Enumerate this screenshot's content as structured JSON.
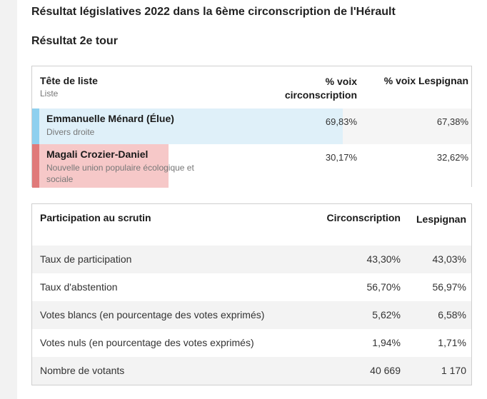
{
  "header": {
    "title": "Résultat législatives 2022 dans la 6ème circonscription de l'Hérault",
    "subtitle": "Résultat 2e tour"
  },
  "results": {
    "col_list": "Tête de liste",
    "col_list_sub": "Liste",
    "col_circ": "% voix circonscription",
    "col_city": "% voix Lespignan",
    "candidates": [
      {
        "name": "Emmanuelle Ménard (Élue)",
        "party": "Divers droite",
        "circ": "69,83%",
        "city": "67,38%",
        "color": "#8fd0ef",
        "share": 0.6983
      },
      {
        "name": "Magali Crozier-Daniel",
        "party": "Nouvelle union populaire écologique et sociale",
        "circ": "30,17%",
        "city": "32,62%",
        "color": "#e07a7a",
        "share": 0.3017
      }
    ]
  },
  "participation": {
    "col_label": "Participation au scrutin",
    "col_circ": "Circonscription",
    "col_city": "Lespignan",
    "rows": [
      {
        "label": "Taux de participation",
        "circ": "43,30%",
        "city": "43,03%"
      },
      {
        "label": "Taux d'abstention",
        "circ": "56,70%",
        "city": "56,97%"
      },
      {
        "label": "Votes blancs (en pourcentage des votes exprimés)",
        "circ": "5,62%",
        "city": "6,58%"
      },
      {
        "label": "Votes nuls (en pourcentage des votes exprimés)",
        "circ": "1,94%",
        "city": "1,71%"
      },
      {
        "label": "Nombre de votants",
        "circ": "40 669",
        "city": "1 170"
      }
    ]
  }
}
